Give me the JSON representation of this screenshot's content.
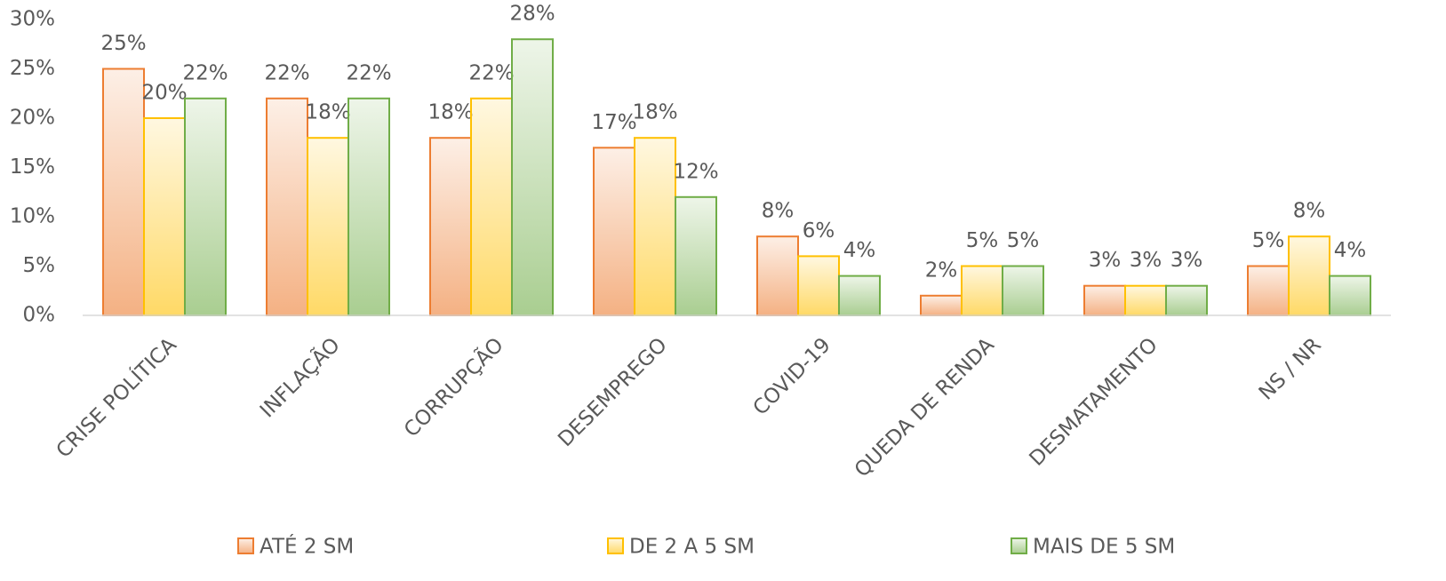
{
  "chart_data": {
    "type": "bar",
    "categories": [
      "CRISE POLÍTICA",
      "INFLAÇÃO",
      "CORRUPÇÃO",
      "DESEMPREGO",
      "COVID-19",
      "QUEDA DE RENDA",
      "DESMATAMENTO",
      "NS / NR"
    ],
    "series": [
      {
        "name": "ATÉ 2 SM",
        "color": "#ed7d31",
        "values": [
          25,
          22,
          18,
          17,
          8,
          2,
          3,
          5
        ],
        "value_labels": [
          "25%",
          "22%",
          "18%",
          "17%",
          "8%",
          "2%",
          "3%",
          "5%"
        ]
      },
      {
        "name": "DE 2 A 5 SM",
        "color": "#ffc000",
        "values": [
          20,
          18,
          22,
          18,
          6,
          5,
          3,
          8
        ],
        "value_labels": [
          "20%",
          "18%",
          "22%",
          "18%",
          "6%",
          "5%",
          "3%",
          "8%"
        ]
      },
      {
        "name": "MAIS DE 5 SM",
        "color": "#70ad47",
        "values": [
          22,
          22,
          28,
          12,
          4,
          5,
          3,
          4
        ],
        "value_labels": [
          "22%",
          "22%",
          "28%",
          "12%",
          "4%",
          "5%",
          "3%",
          "4%"
        ]
      }
    ],
    "ylim": [
      0,
      30
    ],
    "yticks": [
      {
        "value": 0,
        "label": "0%"
      },
      {
        "value": 5,
        "label": "5%"
      },
      {
        "value": 10,
        "label": "10%"
      },
      {
        "value": 15,
        "label": "15%"
      },
      {
        "value": 20,
        "label": "20%"
      },
      {
        "value": 25,
        "label": "25%"
      },
      {
        "value": 30,
        "label": "30%"
      }
    ],
    "legend": "bottom"
  }
}
